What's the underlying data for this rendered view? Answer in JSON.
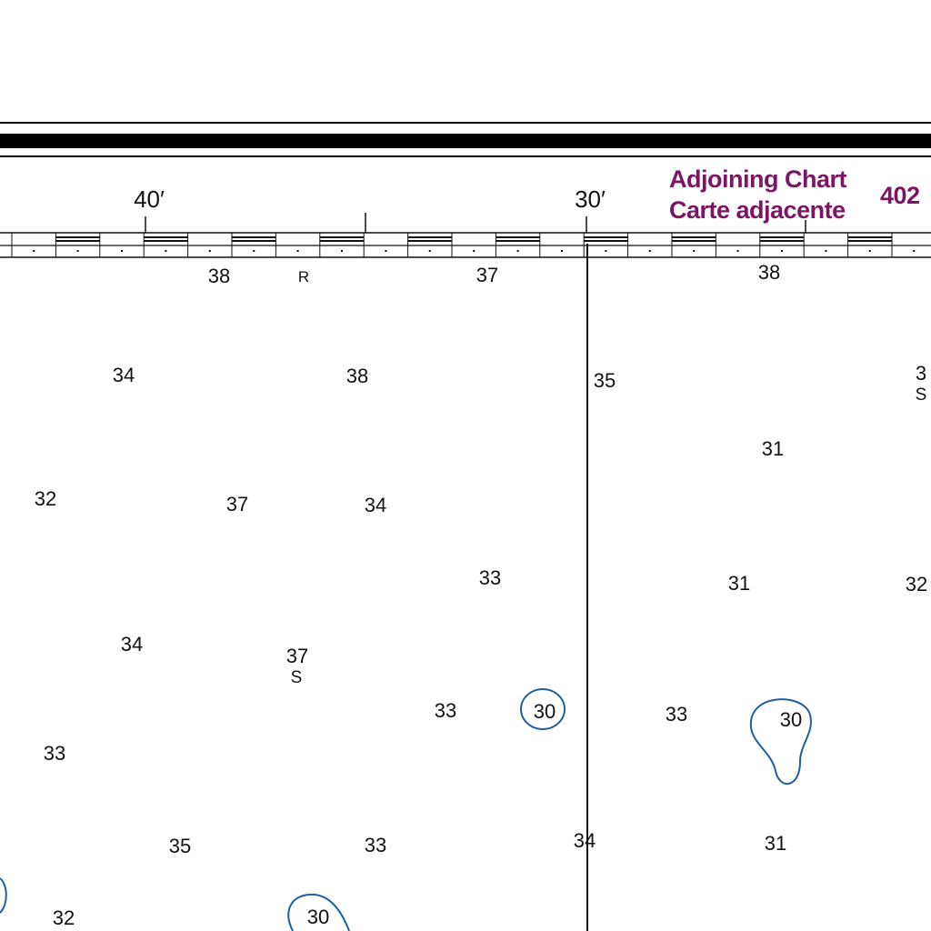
{
  "scale": {
    "labels": [
      {
        "id": "lon-40",
        "text": "40′"
      },
      {
        "id": "lon-30",
        "text": "30′"
      }
    ]
  },
  "adjoining": {
    "line1": "Adjoining Chart",
    "line2": "Carte adjacente",
    "number": "402"
  },
  "soundings": [
    {
      "id": "s1",
      "value": "38"
    },
    {
      "id": "s2",
      "value": "R"
    },
    {
      "id": "s3",
      "value": "37"
    },
    {
      "id": "s4",
      "value": "38"
    },
    {
      "id": "s5",
      "value": "34"
    },
    {
      "id": "s6",
      "value": "38"
    },
    {
      "id": "s7",
      "value": "35"
    },
    {
      "id": "s8",
      "value": "3"
    },
    {
      "id": "s9",
      "value": "S"
    },
    {
      "id": "s10",
      "value": "31"
    },
    {
      "id": "s11",
      "value": "32"
    },
    {
      "id": "s12",
      "value": "37"
    },
    {
      "id": "s13",
      "value": "34"
    },
    {
      "id": "s14",
      "value": "33"
    },
    {
      "id": "s15",
      "value": "31"
    },
    {
      "id": "s16",
      "value": "32"
    },
    {
      "id": "s17",
      "value": "34"
    },
    {
      "id": "s18",
      "value": "37"
    },
    {
      "id": "s19",
      "value": "S"
    },
    {
      "id": "s20",
      "value": "33"
    },
    {
      "id": "s21",
      "value": "30"
    },
    {
      "id": "s22",
      "value": "33"
    },
    {
      "id": "s23",
      "value": "30"
    },
    {
      "id": "s24",
      "value": "33"
    },
    {
      "id": "s25",
      "value": "35"
    },
    {
      "id": "s26",
      "value": "33"
    },
    {
      "id": "s27",
      "value": "34"
    },
    {
      "id": "s28",
      "value": "31"
    },
    {
      "id": "s29",
      "value": "32"
    },
    {
      "id": "s30",
      "value": "30"
    }
  ]
}
